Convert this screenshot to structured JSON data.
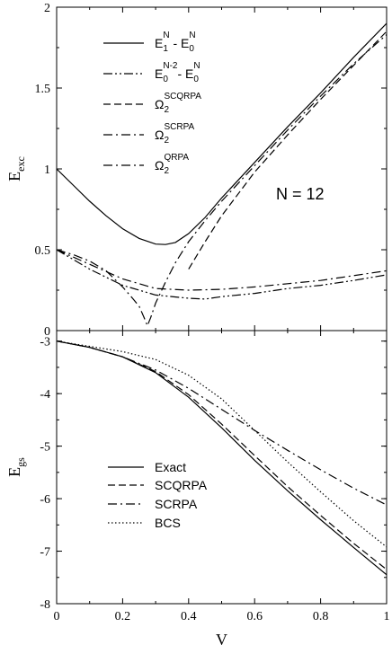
{
  "chart_data": [
    {
      "type": "line",
      "panel": "top",
      "ylabel": {
        "main": "E",
        "sub": "exc"
      },
      "xlim": [
        0,
        1
      ],
      "ylim": [
        0,
        2
      ],
      "yticks": [
        "0",
        "0.5",
        "1",
        "1.5",
        "2"
      ],
      "annotation": "N = 12",
      "legend_position": "top-left",
      "series": [
        {
          "legend": {
            "parts": [
              [
                "E",
                ""
              ],
              [
                "1",
                "sub"
              ],
              [
                "N",
                "sup"
              ],
              [
                " - E",
                ""
              ],
              [
                "0",
                "sub"
              ],
              [
                "N",
                "sup"
              ]
            ]
          },
          "dash": "solid",
          "x": [
            0,
            0.05,
            0.1,
            0.15,
            0.2,
            0.25,
            0.3,
            0.33,
            0.36,
            0.4,
            0.45,
            0.5,
            0.6,
            0.7,
            0.8,
            0.9,
            1.0
          ],
          "y": [
            1.0,
            0.9,
            0.8,
            0.71,
            0.63,
            0.57,
            0.535,
            0.532,
            0.545,
            0.6,
            0.7,
            0.82,
            1.04,
            1.26,
            1.47,
            1.69,
            1.9
          ]
        },
        {
          "legend": {
            "parts": [
              [
                "E",
                ""
              ],
              [
                "0",
                "sub"
              ],
              [
                "N-2",
                "sup"
              ],
              [
                "- E",
                ""
              ],
              [
                "0",
                "sub"
              ],
              [
                "N",
                "sup"
              ]
            ]
          },
          "dash": "dashdotdot",
          "x": [
            0,
            0.1,
            0.2,
            0.3,
            0.4,
            0.45,
            0.5,
            0.6,
            0.7,
            0.8,
            0.9,
            1.0
          ],
          "y": [
            0.5,
            0.38,
            0.28,
            0.22,
            0.2,
            0.195,
            0.21,
            0.23,
            0.26,
            0.28,
            0.31,
            0.345
          ]
        },
        {
          "legend": {
            "parts": [
              [
                "Ω",
                ""
              ],
              [
                "2",
                "sub"
              ],
              [
                "SCQRPA",
                "sup"
              ]
            ]
          },
          "dash": "dashed",
          "x": [
            0.4,
            0.45,
            0.5,
            0.6,
            0.7,
            0.8,
            0.9,
            1.0
          ],
          "y": [
            0.38,
            0.55,
            0.71,
            0.98,
            1.21,
            1.43,
            1.64,
            1.85
          ]
        },
        {
          "legend": {
            "parts": [
              [
                "Ω",
                ""
              ],
              [
                "2",
                "sub"
              ],
              [
                "SCRPA",
                "sup"
              ]
            ]
          },
          "dash": "dashdot",
          "x": [
            0,
            0.1,
            0.2,
            0.3,
            0.4,
            0.5,
            0.6,
            0.7,
            0.8,
            0.9,
            1.0
          ],
          "y": [
            0.5,
            0.41,
            0.32,
            0.26,
            0.25,
            0.255,
            0.27,
            0.29,
            0.31,
            0.34,
            0.37
          ]
        },
        {
          "legend": {
            "parts": [
              [
                "Ω",
                ""
              ],
              [
                "2",
                "sub"
              ],
              [
                "QRPA",
                "sup"
              ]
            ]
          },
          "dash": "dashdot",
          "x": [
            0,
            0.05,
            0.1,
            0.15,
            0.2,
            0.23,
            0.25,
            0.265,
            0.275,
            0.285,
            0.3,
            0.33,
            0.36,
            0.4,
            0.45,
            0.5,
            0.6,
            0.7,
            0.8,
            0.9,
            1.0
          ],
          "y": [
            0.5,
            0.47,
            0.43,
            0.37,
            0.27,
            0.2,
            0.15,
            0.08,
            0.03,
            0.08,
            0.17,
            0.3,
            0.42,
            0.55,
            0.68,
            0.8,
            1.02,
            1.24,
            1.45,
            1.65,
            1.83
          ]
        }
      ]
    },
    {
      "type": "line",
      "panel": "bottom",
      "xlabel": "V",
      "ylabel": {
        "main": "E",
        "sub": "gs"
      },
      "xlim": [
        0,
        1
      ],
      "ylim": [
        -8,
        -2.8
      ],
      "xticks": [
        "0",
        "0.2",
        "0.4",
        "0.6",
        "0.8",
        "1"
      ],
      "yticks": [
        "-3",
        "-4",
        "-5",
        "-6",
        "-7",
        "-8"
      ],
      "legend_position": "bottom-left",
      "series": [
        {
          "name": "Exact",
          "dash": "solid",
          "x": [
            0,
            0.1,
            0.2,
            0.3,
            0.4,
            0.5,
            0.6,
            0.7,
            0.8,
            0.9,
            1.0
          ],
          "y": [
            -3.0,
            -3.12,
            -3.3,
            -3.6,
            -4.07,
            -4.65,
            -5.27,
            -5.85,
            -6.4,
            -6.93,
            -7.45
          ]
        },
        {
          "name": "SCQRPA",
          "dash": "dashed",
          "x": [
            0,
            0.1,
            0.2,
            0.3,
            0.4,
            0.5,
            0.6,
            0.7,
            0.8,
            0.9,
            1.0
          ],
          "y": [
            -3.0,
            -3.12,
            -3.3,
            -3.58,
            -4.02,
            -4.58,
            -5.18,
            -5.77,
            -6.32,
            -6.85,
            -7.35
          ]
        },
        {
          "name": "SCRPA",
          "dash": "dashdot",
          "x": [
            0,
            0.1,
            0.2,
            0.3,
            0.4,
            0.5,
            0.6,
            0.7,
            0.8,
            0.9,
            1.0
          ],
          "y": [
            -3.0,
            -3.12,
            -3.3,
            -3.55,
            -3.9,
            -4.3,
            -4.7,
            -5.08,
            -5.45,
            -5.8,
            -6.12
          ]
        },
        {
          "name": "BCS",
          "dash": "dotted",
          "x": [
            0,
            0.1,
            0.2,
            0.3,
            0.4,
            0.5,
            0.6,
            0.7,
            0.8,
            0.9,
            1.0
          ],
          "y": [
            -3.0,
            -3.1,
            -3.2,
            -3.35,
            -3.65,
            -4.1,
            -4.7,
            -5.3,
            -5.87,
            -6.42,
            -6.92
          ]
        }
      ]
    }
  ]
}
